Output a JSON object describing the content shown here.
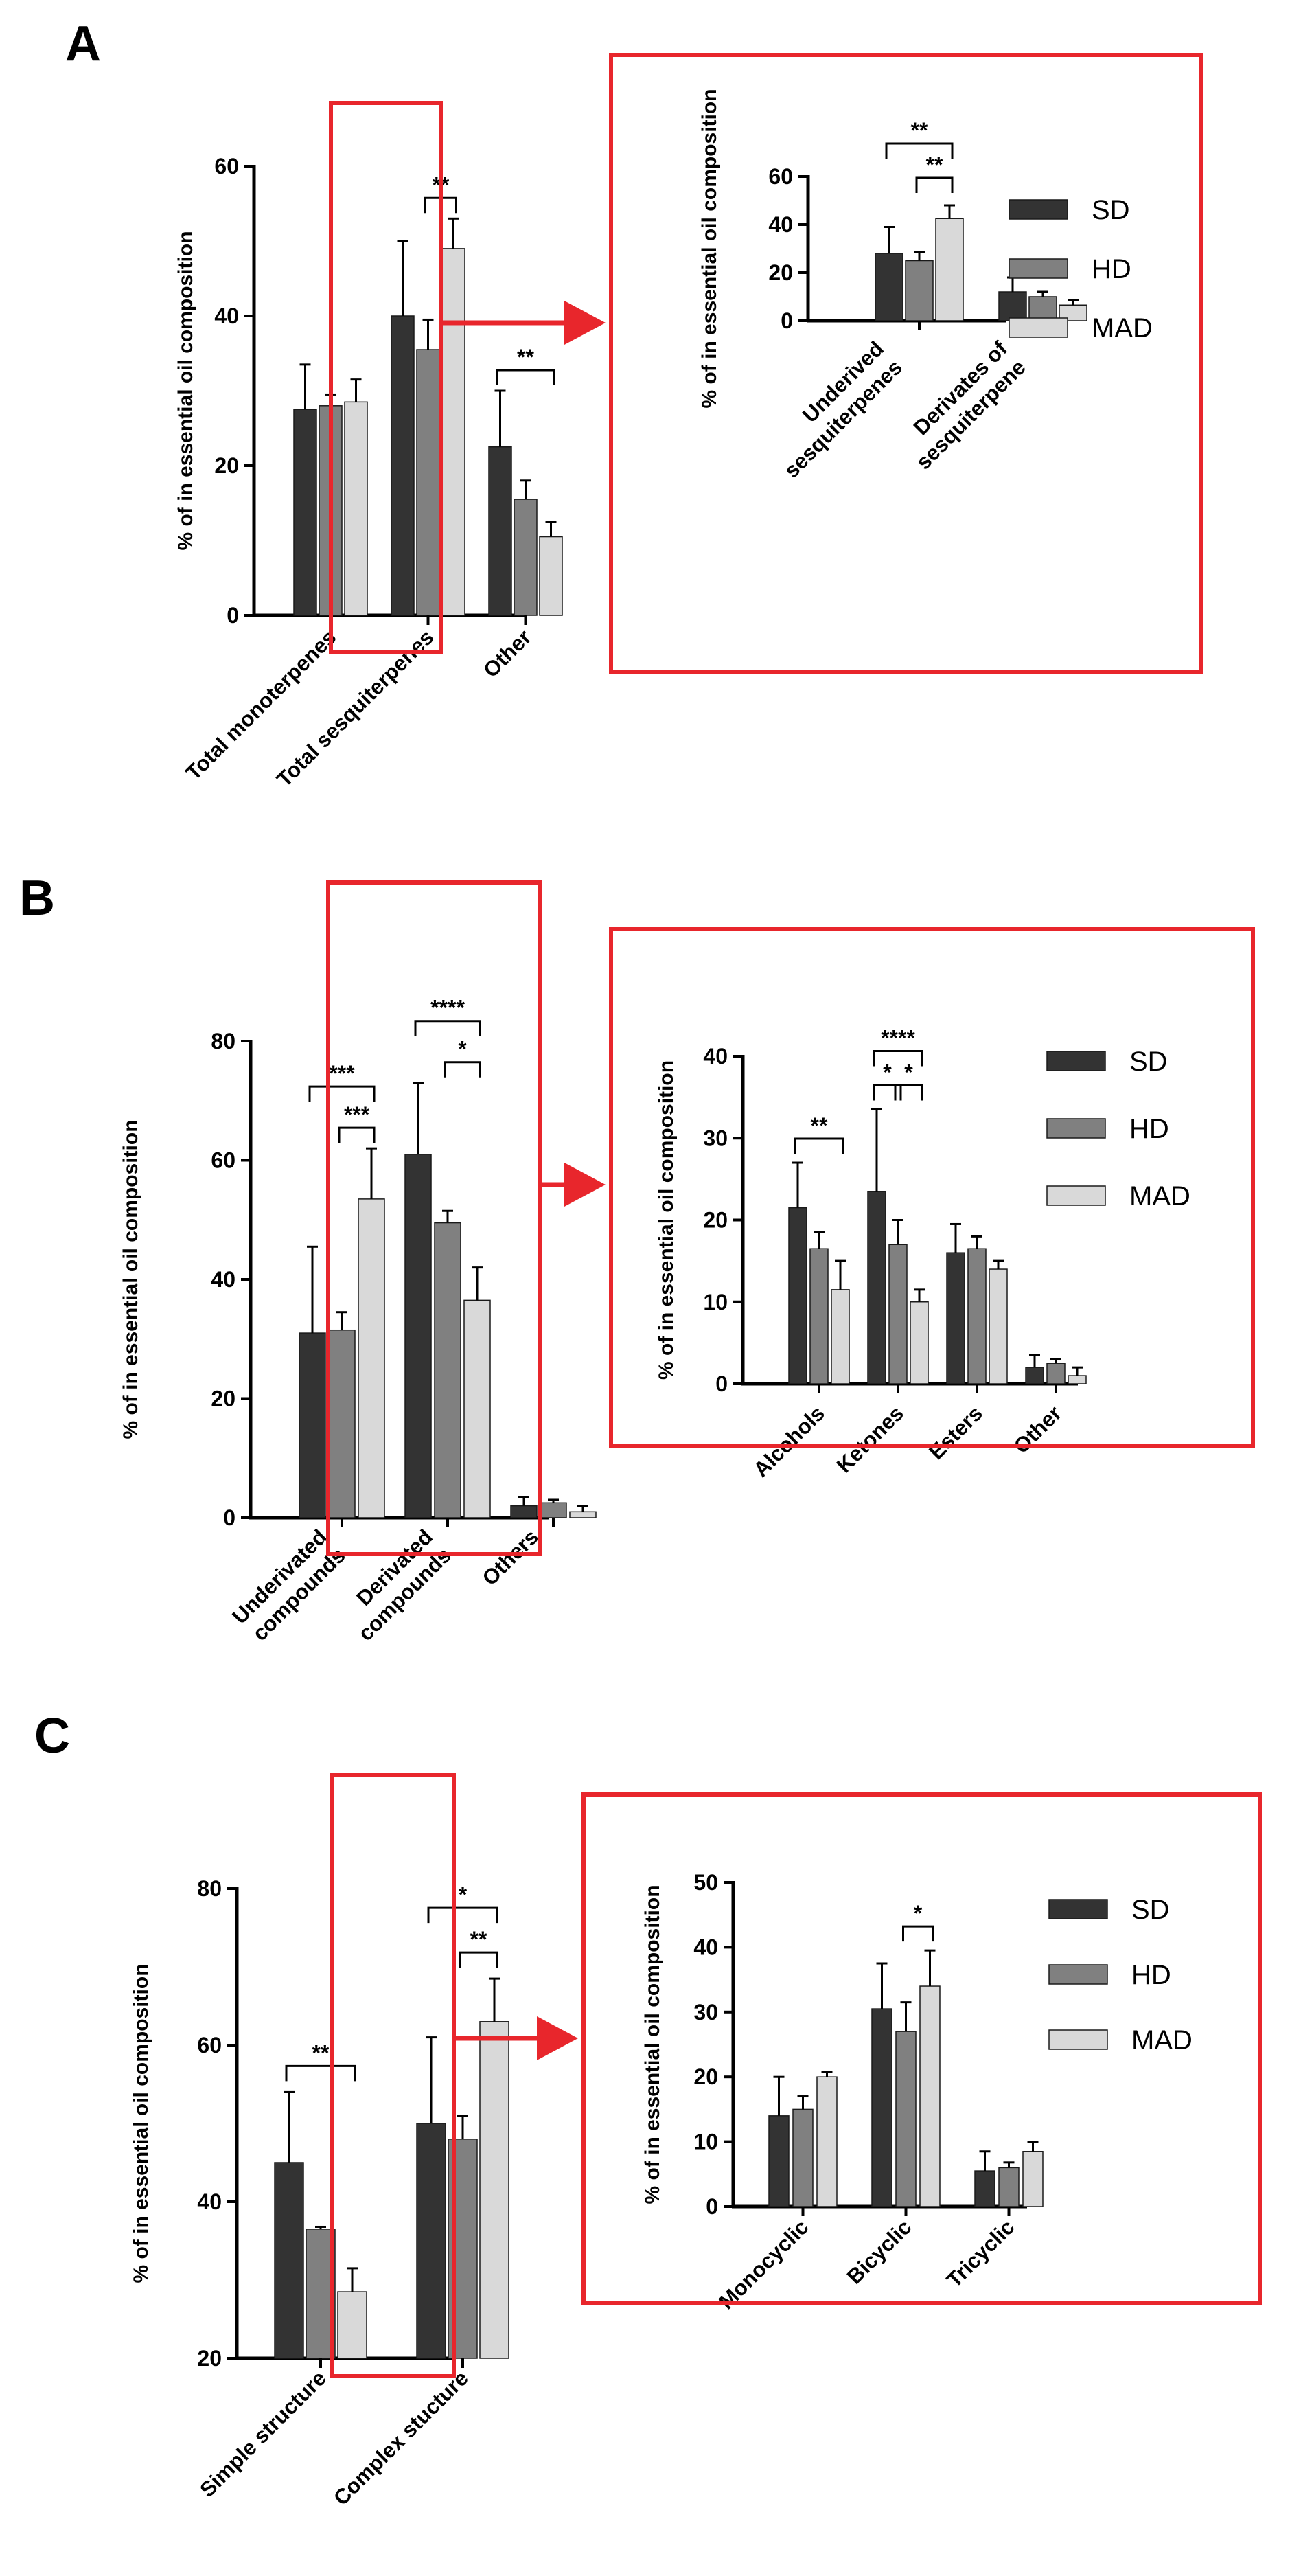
{
  "figure": {
    "panel_letters": [
      "A",
      "B",
      "C"
    ]
  },
  "colors": {
    "SD": "#333333",
    "HD": "#808080",
    "MAD": "#d9d9d9",
    "highlight": "#e8262c"
  },
  "legend": [
    "SD",
    "HD",
    "MAD"
  ],
  "chart_data": [
    {
      "id": "A-main",
      "type": "bar",
      "panel": "A",
      "ylabel": "% of in essential oil composition",
      "ylim": [
        0,
        60
      ],
      "yticks": [
        0,
        20,
        40,
        60
      ],
      "categories": [
        "Total monoterpenes",
        "Total sesquiterpenes",
        "Other"
      ],
      "series": [
        {
          "name": "SD",
          "values": [
            27.5,
            40.0,
            22.5
          ],
          "errors": [
            6.0,
            10.0,
            7.5
          ]
        },
        {
          "name": "HD",
          "values": [
            28.0,
            35.5,
            15.5
          ],
          "errors": [
            1.5,
            4.0,
            2.5
          ]
        },
        {
          "name": "MAD",
          "values": [
            28.5,
            49.0,
            10.5
          ],
          "errors": [
            3.0,
            4.0,
            2.0
          ]
        }
      ],
      "significance": [
        {
          "label": "**",
          "category": 1,
          "from": 1,
          "to": 2,
          "level": 1
        },
        {
          "label": "**",
          "category": 2,
          "from": 0,
          "to": 2,
          "level": 1
        }
      ],
      "highlight": {
        "category": 1
      }
    },
    {
      "id": "A-inset",
      "type": "bar",
      "panel": "A",
      "ylabel": "% of in essential oil composition",
      "ylim": [
        0,
        60
      ],
      "yticks": [
        0,
        20,
        40,
        60
      ],
      "categories": [
        "Underived\nsesquiterpenes",
        "Derivates of\nsesquiterpene"
      ],
      "series": [
        {
          "name": "SD",
          "values": [
            28.0,
            12.0
          ],
          "errors": [
            11.0,
            6.0
          ]
        },
        {
          "name": "HD",
          "values": [
            25.0,
            10.0
          ],
          "errors": [
            3.5,
            2.0
          ]
        },
        {
          "name": "MAD",
          "values": [
            42.5,
            6.5
          ],
          "errors": [
            5.5,
            2.0
          ]
        }
      ],
      "significance": [
        {
          "label": "**",
          "category": 0,
          "from": 0,
          "to": 2,
          "level": 2
        },
        {
          "label": "**",
          "category": 0,
          "from": 1,
          "to": 2,
          "level": 1
        }
      ]
    },
    {
      "id": "B-main",
      "type": "bar",
      "panel": "B",
      "ylabel": "% of in essential oil composition",
      "ylim": [
        0,
        80
      ],
      "yticks": [
        0,
        20,
        40,
        60,
        80
      ],
      "categories": [
        "Underivated\ncompounds",
        "Derivated\ncompounds",
        "Others"
      ],
      "series": [
        {
          "name": "SD",
          "values": [
            31.0,
            61.0,
            2.0
          ],
          "errors": [
            14.5,
            12.0,
            1.5
          ]
        },
        {
          "name": "HD",
          "values": [
            31.5,
            49.5,
            2.5
          ],
          "errors": [
            3.0,
            2.0,
            0.5
          ]
        },
        {
          "name": "MAD",
          "values": [
            53.5,
            36.5,
            1.0
          ],
          "errors": [
            8.5,
            5.5,
            1.0
          ]
        }
      ],
      "significance": [
        {
          "label": "***",
          "category": 0,
          "from": 0,
          "to": 2,
          "level": 2
        },
        {
          "label": "***",
          "category": 0,
          "from": 1,
          "to": 2,
          "level": 1
        },
        {
          "label": "****",
          "category": 1,
          "from": 0,
          "to": 2,
          "level": 2
        },
        {
          "label": "*",
          "category": 1,
          "from": 1,
          "to": 2,
          "level": 1
        }
      ],
      "highlight": {
        "category": 1
      }
    },
    {
      "id": "B-inset",
      "type": "bar",
      "panel": "B",
      "ylabel": "% of in essential oil composition",
      "ylim": [
        0,
        40
      ],
      "yticks": [
        0,
        10,
        20,
        30,
        40
      ],
      "categories": [
        "Alcohols",
        "Ketones",
        "Esters",
        "Other"
      ],
      "series": [
        {
          "name": "SD",
          "values": [
            21.5,
            23.5,
            16.0,
            2.0
          ],
          "errors": [
            5.5,
            10.0,
            3.5,
            1.5
          ]
        },
        {
          "name": "HD",
          "values": [
            16.5,
            17.0,
            16.5,
            2.5
          ],
          "errors": [
            2.0,
            3.0,
            1.5,
            0.5
          ]
        },
        {
          "name": "MAD",
          "values": [
            11.5,
            10.0,
            14.0,
            1.0
          ],
          "errors": [
            3.5,
            1.5,
            1.0,
            1.0
          ]
        }
      ],
      "significance": [
        {
          "label": "**",
          "category": 0,
          "from": 0,
          "to": 2,
          "level": 1
        },
        {
          "label": "****",
          "category": 1,
          "from": 0,
          "to": 2,
          "level": 2
        },
        {
          "label": "*",
          "category": 1,
          "from": 0,
          "to": 1,
          "level": 1
        },
        {
          "label": "*",
          "category": 1,
          "from": 1,
          "to": 2,
          "level": 1
        }
      ]
    },
    {
      "id": "C-main",
      "type": "bar",
      "panel": "C",
      "ylabel": "% of in essential oil composition",
      "ylim": [
        20,
        80
      ],
      "yticks": [
        20,
        40,
        60,
        80
      ],
      "categories": [
        "Simple structure",
        "Complex stucture"
      ],
      "series": [
        {
          "name": "SD",
          "values": [
            45.0,
            50.0
          ],
          "errors": [
            9.0,
            11.0
          ]
        },
        {
          "name": "HD",
          "values": [
            36.5,
            48.0
          ],
          "errors": [
            0.3,
            3.0
          ]
        },
        {
          "name": "MAD",
          "values": [
            28.5,
            63.0
          ],
          "errors": [
            3.0,
            5.5
          ]
        }
      ],
      "significance": [
        {
          "label": "**",
          "category": 0,
          "from": 0,
          "to": 2,
          "level": 1
        },
        {
          "label": "*",
          "category": 1,
          "from": 0,
          "to": 2,
          "level": 2
        },
        {
          "label": "**",
          "category": 1,
          "from": 1,
          "to": 2,
          "level": 1
        }
      ],
      "highlight": {
        "category": 1
      }
    },
    {
      "id": "C-inset",
      "type": "bar",
      "panel": "C",
      "ylabel": "% of in essential oil composition",
      "ylim": [
        0,
        50
      ],
      "yticks": [
        0,
        10,
        20,
        30,
        40,
        50
      ],
      "categories": [
        "Monocyclic",
        "Bicyclic",
        "Tricyclic"
      ],
      "series": [
        {
          "name": "SD",
          "values": [
            14.0,
            30.5,
            5.5
          ],
          "errors": [
            6.0,
            7.0,
            3.0
          ]
        },
        {
          "name": "HD",
          "values": [
            15.0,
            27.0,
            6.0
          ],
          "errors": [
            2.0,
            4.5,
            0.8
          ]
        },
        {
          "name": "MAD",
          "values": [
            20.0,
            34.0,
            8.5
          ],
          "errors": [
            0.8,
            5.5,
            1.5
          ]
        }
      ],
      "significance": [
        {
          "label": "*",
          "category": 1,
          "from": 1,
          "to": 2,
          "level": 1
        }
      ]
    }
  ]
}
